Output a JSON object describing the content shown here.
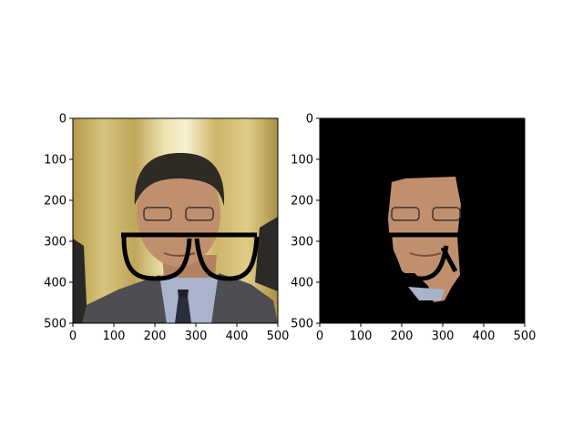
{
  "chart_data": [
    {
      "type": "image",
      "title": "",
      "xlabel": "",
      "ylabel": "",
      "xlim": [
        0,
        500
      ],
      "ylim": [
        500,
        0
      ],
      "xticks": [
        0,
        100,
        200,
        300,
        400,
        500
      ],
      "yticks": [
        0,
        100,
        200,
        300,
        400,
        500
      ],
      "content": "photo of a man in a grey suit with drawn-on black eyeglasses, beige curtain background",
      "colors": {
        "background": "#cbb567",
        "curtain_light": "#e6d79a",
        "suit": "#4e4e52",
        "shirt": "#a9b4cc",
        "hair": "#2e2a24",
        "skin": "#c0906e",
        "glasses": "#000000"
      }
    },
    {
      "type": "image",
      "title": "",
      "xlabel": "",
      "ylabel": "",
      "xlim": [
        0,
        500
      ],
      "ylim": [
        500,
        0
      ],
      "xticks": [
        0,
        100,
        200,
        300,
        400,
        500
      ],
      "yticks": [
        0,
        100,
        200,
        300,
        400,
        500
      ],
      "content": "segmented face region on black background with glasses overlay",
      "colors": {
        "background": "#000000",
        "skin": "#c0906e",
        "shirt": "#a9b4cc"
      }
    }
  ]
}
